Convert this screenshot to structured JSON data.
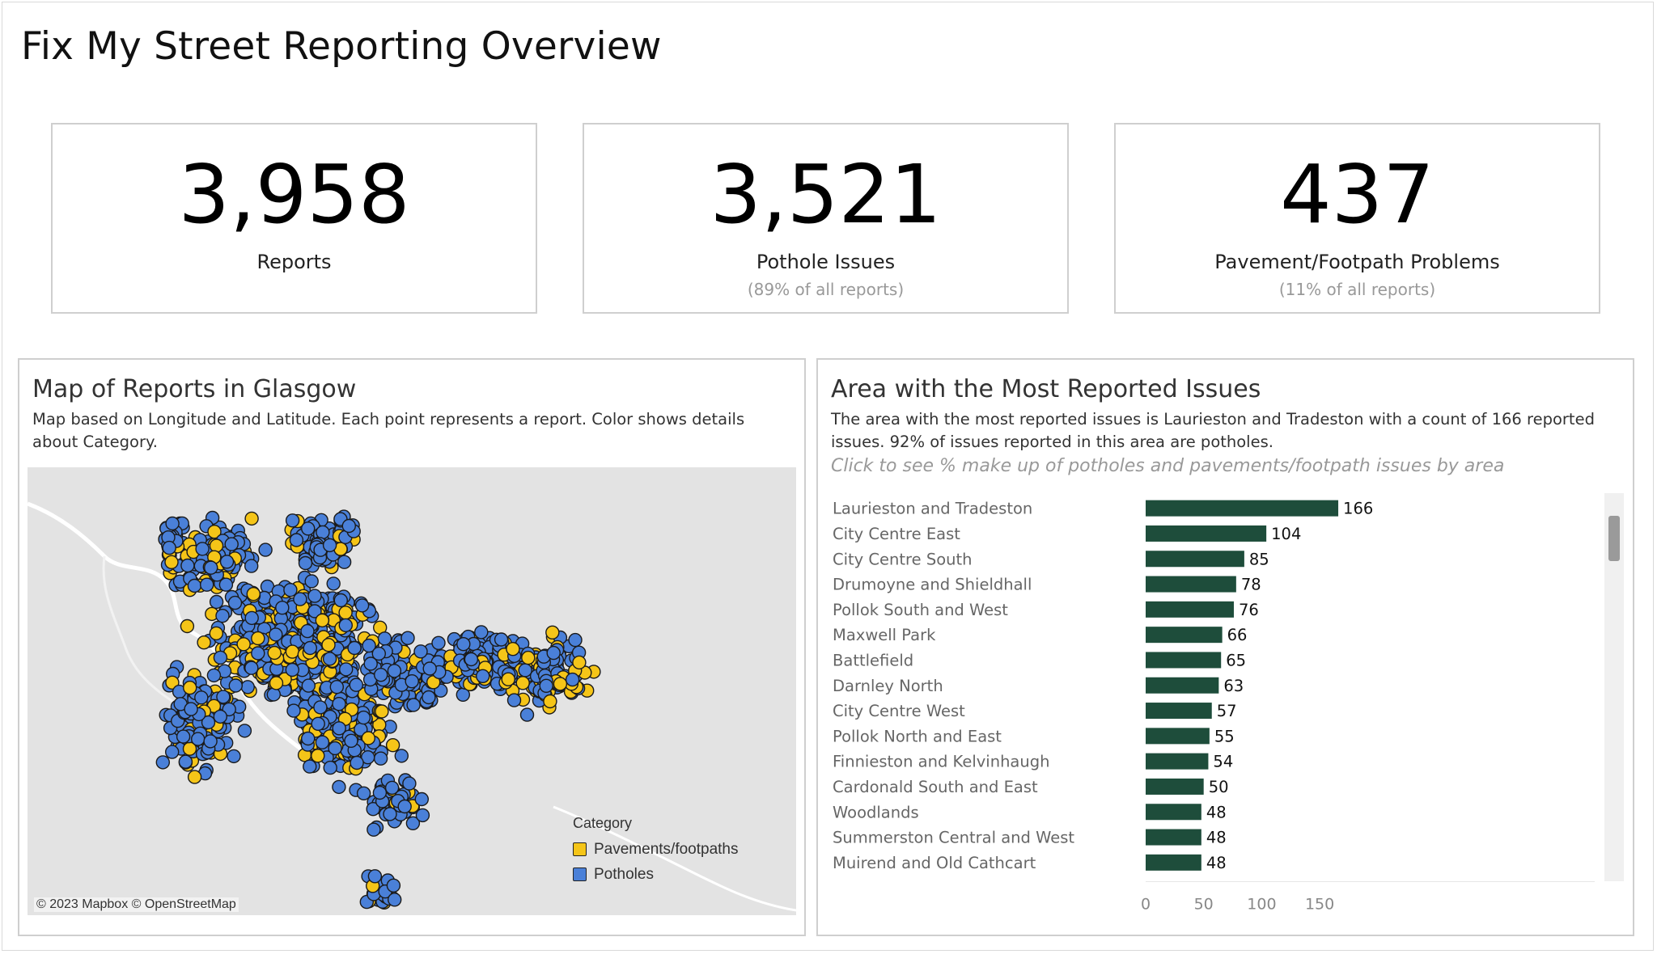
{
  "title": "Fix My Street Reporting Overview",
  "kpis": [
    {
      "value": "3,958",
      "label": "Reports",
      "sub": ""
    },
    {
      "value": "3,521",
      "label": "Pothole Issues",
      "sub": "(89% of all reports)"
    },
    {
      "value": "437",
      "label": "Pavement/Footpath Problems",
      "sub": "(11% of all reports)"
    }
  ],
  "map_panel": {
    "title": "Map of Reports in Glasgow",
    "description": "Map based on Longitude and Latitude.  Each point represents a report. Color shows details about Category.",
    "attribution": "© 2023 Mapbox © OpenStreetMap",
    "legend": {
      "title": "Category",
      "items": [
        {
          "label": "Pavements/footpaths",
          "color": "#f5c518"
        },
        {
          "label": "Potholes",
          "color": "#4a80d8"
        }
      ]
    }
  },
  "area_panel": {
    "title": "Area with the Most Reported Issues",
    "description": "The area with the most reported issues is Laurieston and Tradeston with a count of 166 reported issues. 92% of issues reported in this area are potholes.",
    "note": "Click to see % make up of potholes and pavements/footpath issues by area"
  },
  "chart_data": {
    "type": "bar",
    "orientation": "horizontal",
    "categories": [
      "Laurieston and Tradeston",
      "City Centre East",
      "City Centre South",
      "Drumoyne and Shieldhall",
      "Pollok South and West",
      "Maxwell Park",
      "Battlefield",
      "Darnley North",
      "City Centre West",
      "Pollok North and East",
      "Finnieston and Kelvinhaugh",
      "Cardonald South and East",
      "Woodlands",
      "Summerston Central and West",
      "Muirend and Old Cathcart"
    ],
    "values": [
      166,
      104,
      85,
      78,
      76,
      66,
      65,
      63,
      57,
      55,
      54,
      50,
      48,
      48,
      48
    ],
    "xticks": [
      "0",
      "50",
      "100",
      "150"
    ],
    "xlim": [
      0,
      190
    ],
    "bar_color": "#1e4d3b",
    "grid": false
  }
}
